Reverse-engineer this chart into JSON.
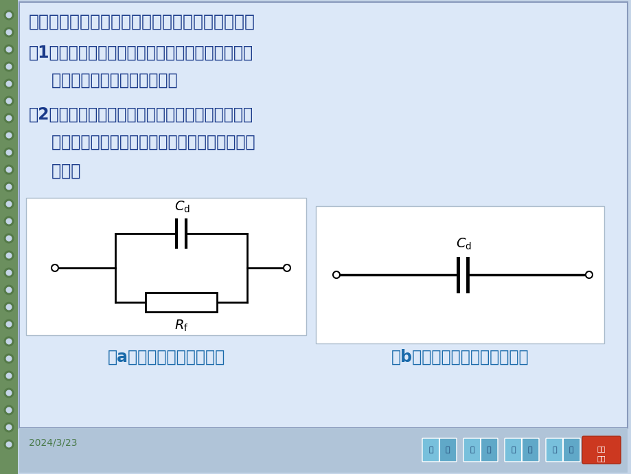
{
  "fig_w": 9.2,
  "fig_h": 6.9,
  "dpi": 100,
  "bg_color": "#c5d5e8",
  "main_bg": "#dce8f8",
  "bottom_bar_color": "#b0c4d8",
  "spine_color": "#6b8f5e",
  "spine_hole_outer": "#557a48",
  "spine_hole_inner": "#c5d5e8",
  "border_color": "#8899bb",
  "title_text": "直流电通过一个电极时，可能起到以下两种作用：",
  "para1_line1": "（1）参与电极反应而被消耗掉。这部分电流相当于",
  "para1_line2": "    通过一个负载电阻而被消耗。",
  "para2_line1": "（2）参与建立或改变双电层。这部分电流的作用类",
  "para2_line2": "    似于给电容器充电，只在电路中引起短暂的充电",
  "para2_line3": "    电流。",
  "caption_a": "（a）电极体系的等效电路",
  "caption_b": "（b）理想极化电极的等效电路",
  "date_text": "2024/3/23",
  "text_color": "#1a3a8a",
  "caption_color": "#1a6aaa",
  "date_color": "#4a7a4a",
  "title_fontsize": 18,
  "body_fontsize": 17,
  "caption_fontsize": 17,
  "circuit_box_bg": "#f8f8f8",
  "circuit_box_b_bg": "#f0f0f0",
  "nav_color": "#70b8d8",
  "nav_last_color": "#cc3820"
}
